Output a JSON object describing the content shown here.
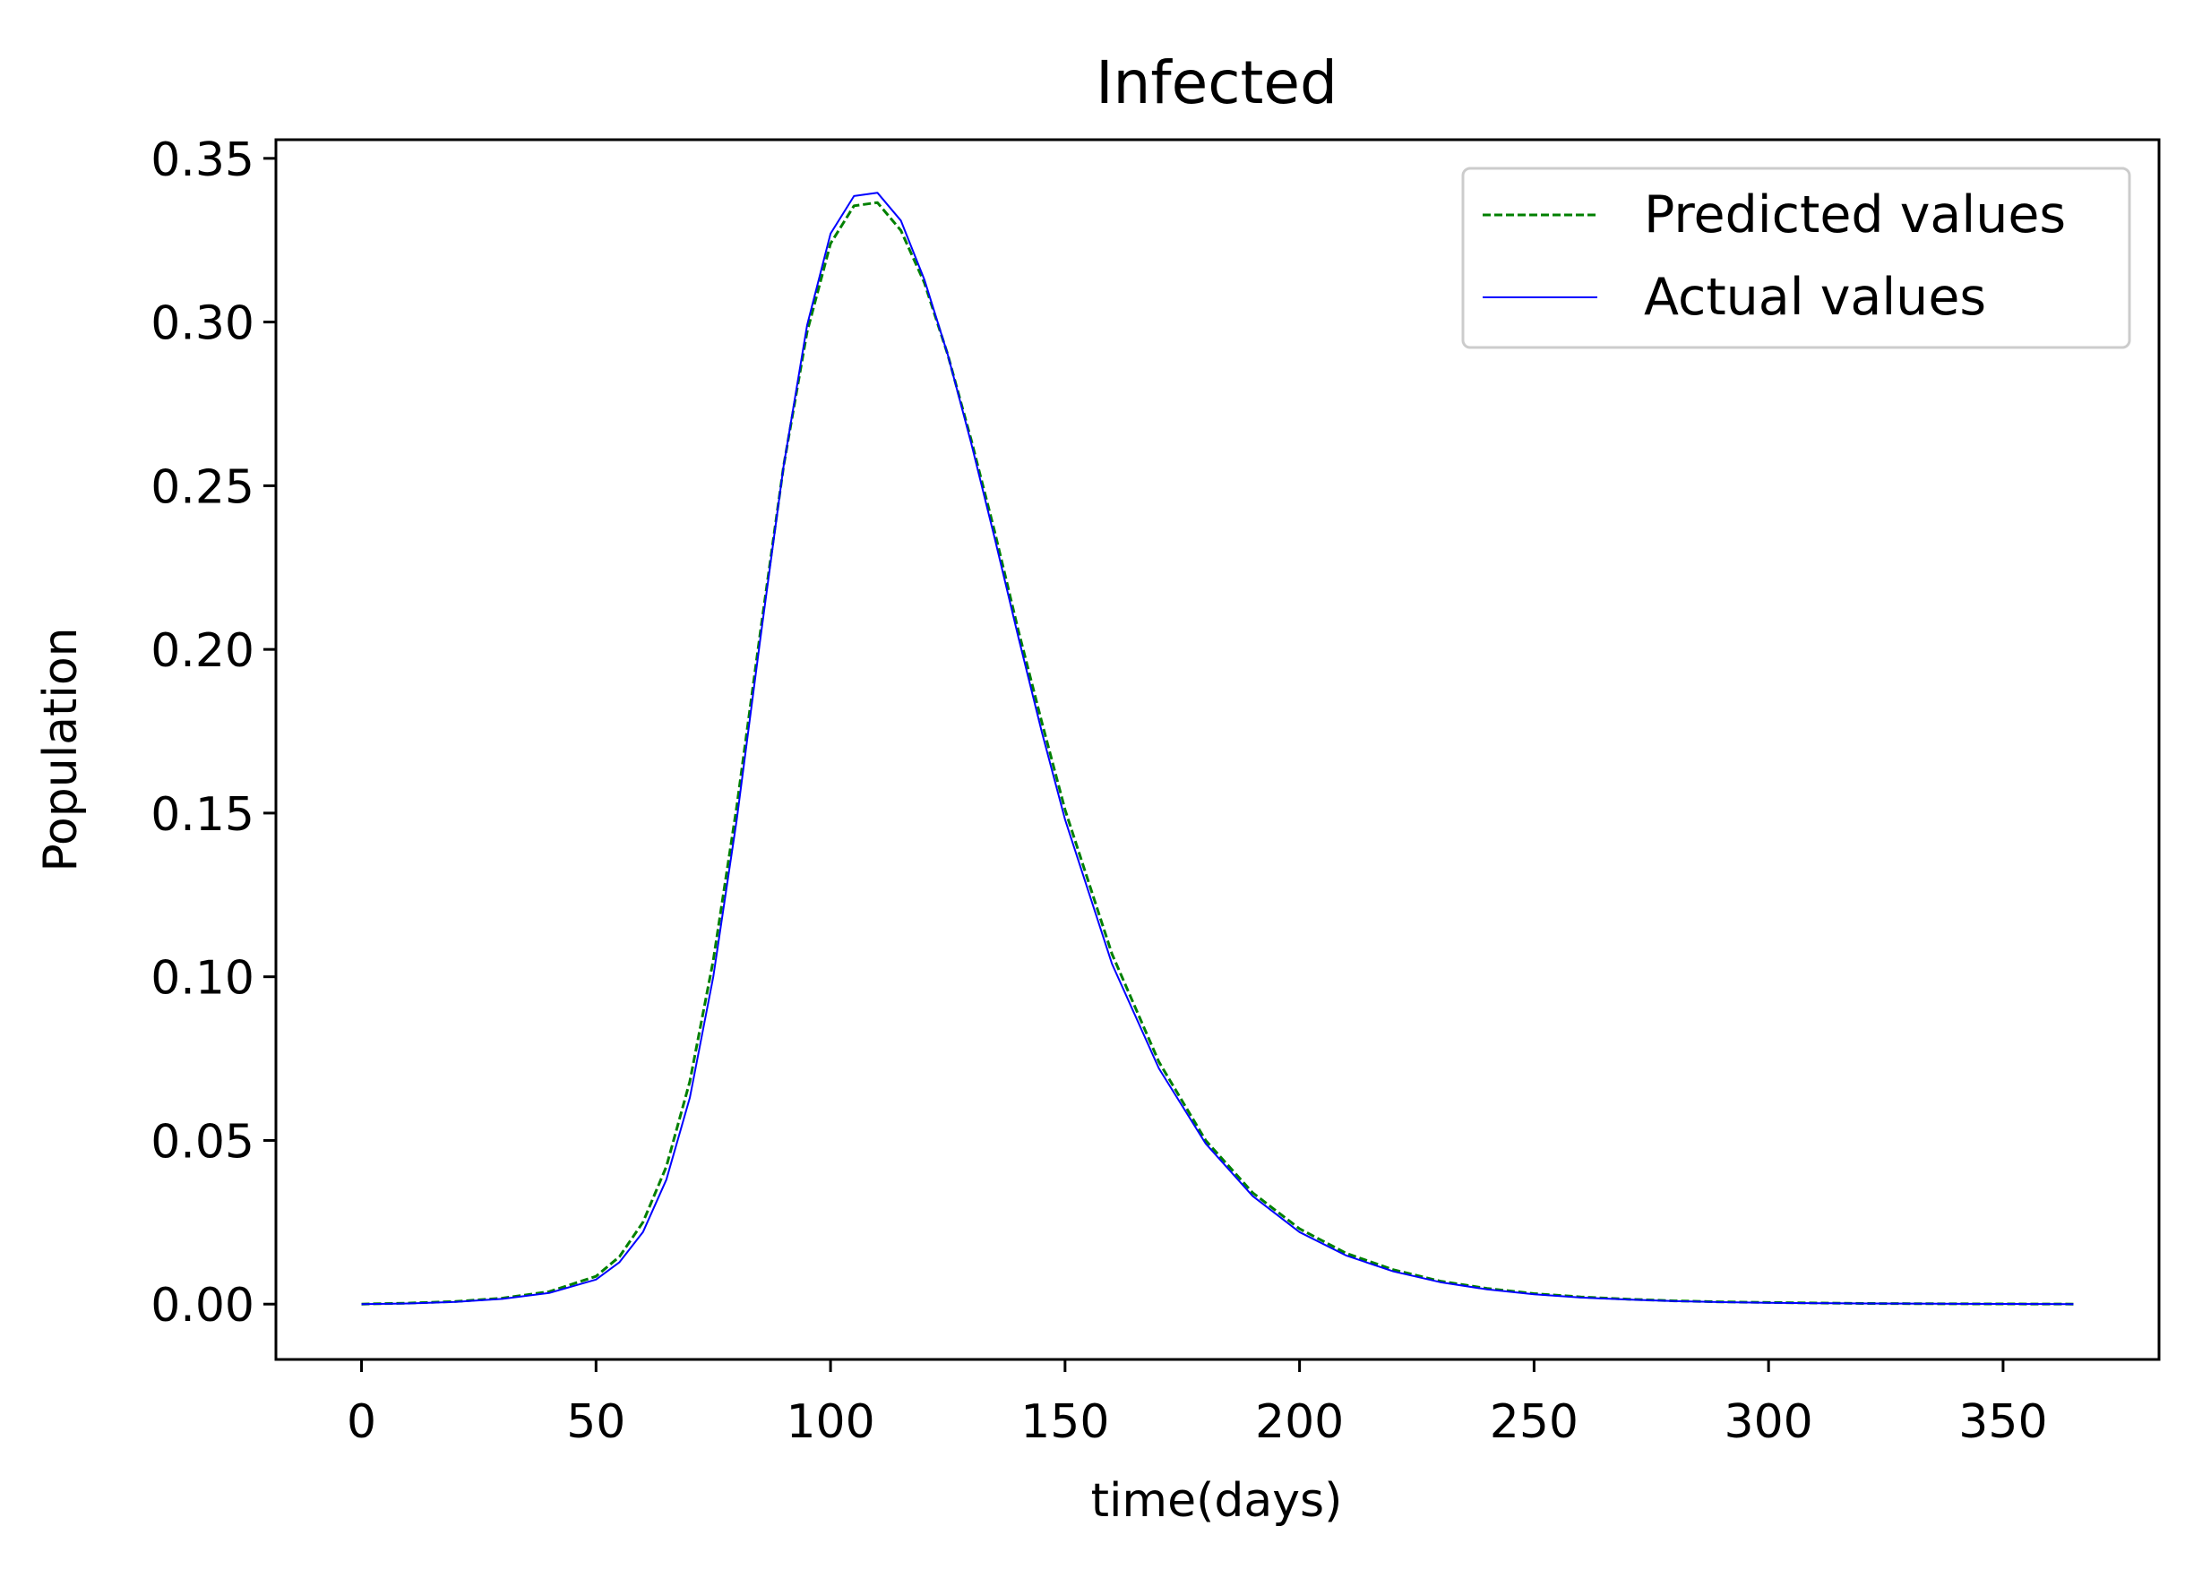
{
  "chart_data": {
    "type": "line",
    "title": "Infected",
    "xlabel": "time(days)",
    "ylabel": "Population",
    "xlim": [
      -18.25,
      383.25
    ],
    "ylim": [
      -0.0169,
      0.3557
    ],
    "xticks": [
      0,
      50,
      100,
      150,
      200,
      250,
      300,
      350
    ],
    "yticks": [
      0.0,
      0.05,
      0.1,
      0.15,
      0.2,
      0.25,
      0.3,
      0.35
    ],
    "ytick_labels": [
      "0.00",
      "0.05",
      "0.10",
      "0.15",
      "0.20",
      "0.25",
      "0.30",
      "0.35"
    ],
    "xtick_labels": [
      "0",
      "50",
      "100",
      "150",
      "200",
      "250",
      "300",
      "350"
    ],
    "grid": false,
    "legend_position": "top-right",
    "series": [
      {
        "name": "Predicted values",
        "color": "#008000",
        "style": "dashed",
        "x": [
          0,
          10,
          20,
          30,
          40,
          50,
          55,
          60,
          65,
          70,
          75,
          80,
          85,
          90,
          95,
          100,
          105,
          110,
          115,
          120,
          125,
          130,
          135,
          140,
          145,
          150,
          160,
          170,
          180,
          190,
          200,
          210,
          220,
          230,
          240,
          250,
          260,
          270,
          280,
          290,
          300,
          320,
          340,
          365
        ],
        "y": [
          0.0,
          0.0003,
          0.0008,
          0.0018,
          0.0038,
          0.0085,
          0.0145,
          0.025,
          0.042,
          0.068,
          0.105,
          0.152,
          0.205,
          0.256,
          0.297,
          0.324,
          0.3355,
          0.3365,
          0.328,
          0.312,
          0.29,
          0.264,
          0.236,
          0.206,
          0.178,
          0.151,
          0.107,
          0.074,
          0.05,
          0.034,
          0.023,
          0.0155,
          0.0105,
          0.007,
          0.0048,
          0.0032,
          0.0022,
          0.0015,
          0.001,
          0.0007,
          0.0005,
          0.0002,
          0.0001,
          0.0
        ]
      },
      {
        "name": "Actual values",
        "color": "#0000ff",
        "style": "solid",
        "x": [
          0,
          10,
          20,
          30,
          40,
          50,
          55,
          60,
          65,
          70,
          75,
          80,
          85,
          90,
          95,
          100,
          105,
          110,
          115,
          120,
          125,
          130,
          135,
          140,
          145,
          150,
          160,
          170,
          180,
          190,
          200,
          210,
          220,
          230,
          240,
          250,
          260,
          270,
          280,
          290,
          300,
          320,
          340,
          365
        ],
        "y": [
          0.0,
          0.0002,
          0.0007,
          0.0016,
          0.0034,
          0.0075,
          0.0128,
          0.022,
          0.038,
          0.063,
          0.1,
          0.148,
          0.203,
          0.256,
          0.299,
          0.327,
          0.3385,
          0.3395,
          0.331,
          0.313,
          0.29,
          0.263,
          0.234,
          0.204,
          0.175,
          0.148,
          0.104,
          0.072,
          0.049,
          0.033,
          0.022,
          0.0148,
          0.01,
          0.0067,
          0.0045,
          0.003,
          0.002,
          0.0014,
          0.0009,
          0.0006,
          0.0004,
          0.0002,
          0.0001,
          0.0
        ]
      }
    ]
  }
}
